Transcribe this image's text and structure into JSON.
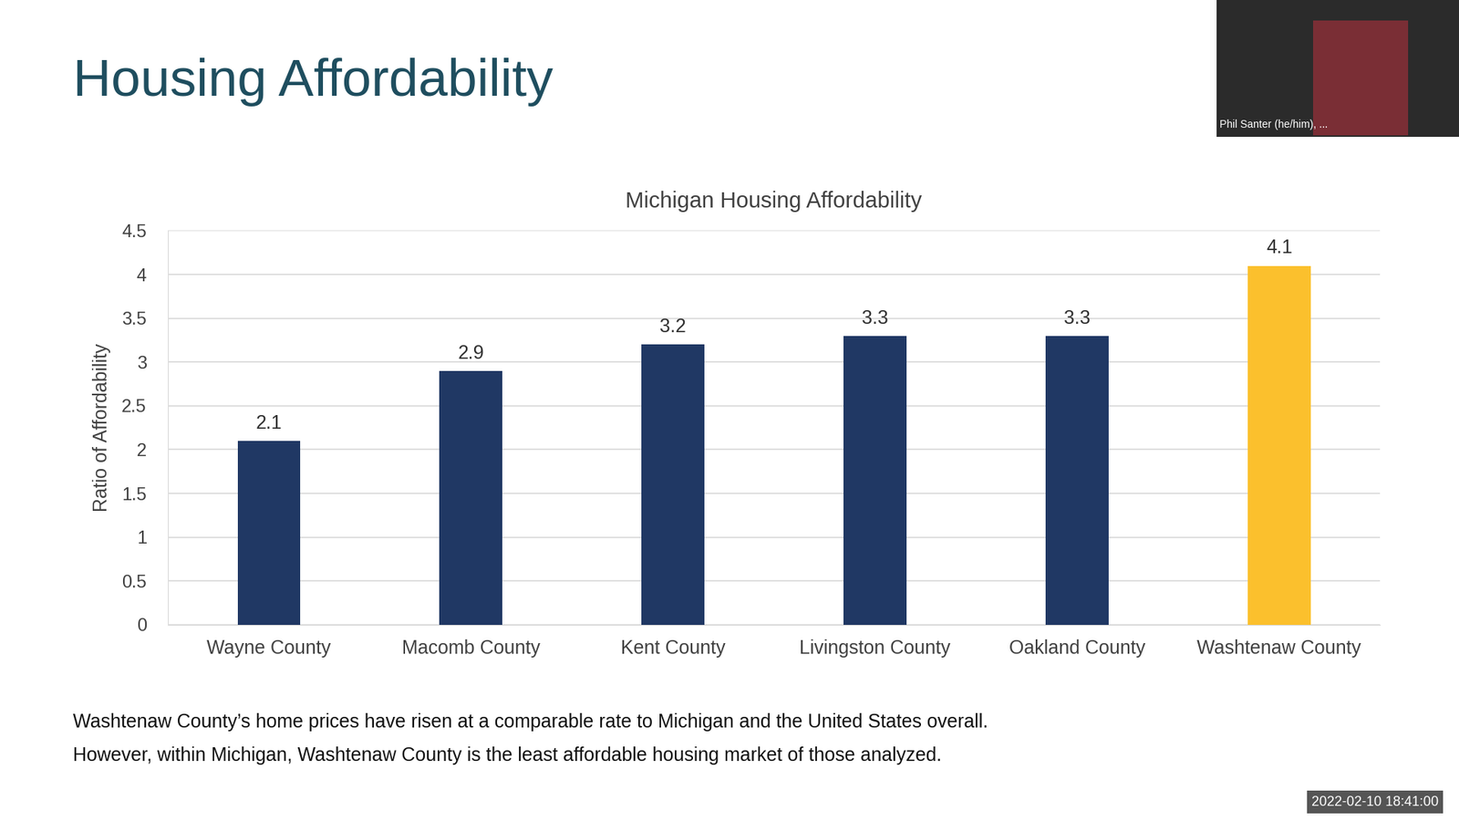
{
  "slide": {
    "heading": "Housing Affordability",
    "caption_lines": [
      "Washtenaw County’s home prices have risen at a comparable rate to Michigan and the United States overall.",
      "However, within Michigan, Washtenaw County is the least affordable housing market of those analyzed."
    ],
    "video_name": "Phil Santer (he/him), ...",
    "timestamp": "2022-02-10 18:41:00"
  },
  "chart_data": {
    "type": "bar",
    "title": "Michigan Housing Affordability",
    "y_label": "Ratio of Affordability",
    "categories": [
      "Wayne County",
      "Macomb County",
      "Kent County",
      "Livingston County",
      "Oakland County",
      "Washtenaw County"
    ],
    "values": [
      2.1,
      2.9,
      3.2,
      3.3,
      3.3,
      4.1
    ],
    "colors": [
      "#203864",
      "#203864",
      "#203864",
      "#203864",
      "#203864",
      "#FBC02D"
    ],
    "ylim": [
      0,
      4.5
    ],
    "yticks": [
      0,
      0.5,
      1,
      1.5,
      2,
      2.5,
      3,
      3.5,
      4,
      4.5
    ],
    "grid": true,
    "data_labels": true
  }
}
